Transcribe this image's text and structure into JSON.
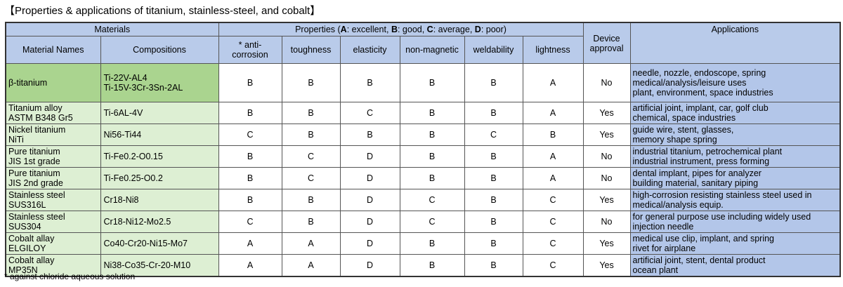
{
  "title": "【Properties & applications of titanium, stainless-steel, and cobalt】",
  "header": {
    "materials": "Materials",
    "properties_prefix": "Properties (",
    "grades": [
      {
        "letter": "A",
        "text": ": excellent, "
      },
      {
        "letter": "B",
        "text": ": good, "
      },
      {
        "letter": "C",
        "text": ": average, "
      },
      {
        "letter": "D",
        "text": ": poor)"
      }
    ],
    "device_approval_1": "Device",
    "device_approval_2": "approval",
    "applications": "Applications",
    "material_names": "Material Names",
    "compositions": "Compositions",
    "anti_corrosion_1": "* anti-",
    "anti_corrosion_2": "corrosion",
    "toughness": "toughness",
    "elasticity": "elasticity",
    "non_magnetic": "non-magnetic",
    "weldability": "weldability",
    "lightness": "lightness"
  },
  "rows": [
    {
      "name": [
        "β-titanium"
      ],
      "comp": [
        "Ti-22V-AL4",
        "Ti-15V-3Cr-3Sn-2AL"
      ],
      "anti": "B",
      "tough": "B",
      "elastic": "B",
      "nonmag": "B",
      "weld": "B",
      "light": "A",
      "approval": "No",
      "app": [
        "needle, nozzle, endoscope, spring",
        "medical/analysis/leisure uses",
        "plant, environment, space industries"
      ]
    },
    {
      "name": [
        "Titanium alloy",
        "ASTM B348 Gr5"
      ],
      "comp": [
        "Ti-6AL-4V"
      ],
      "anti": "B",
      "tough": "B",
      "elastic": "C",
      "nonmag": "B",
      "weld": "B",
      "light": "A",
      "approval": "Yes",
      "app": [
        "artificial joint, implant, car, golf club",
        "chemical, space industries"
      ]
    },
    {
      "name": [
        "Nickel titanium",
        "NiTi"
      ],
      "comp": [
        "Ni56-Ti44"
      ],
      "anti": "C",
      "tough": "B",
      "elastic": "B",
      "nonmag": "B",
      "weld": "C",
      "light": "B",
      "approval": "Yes",
      "app": [
        "guide wire, stent, glasses,",
        "memory shape spring"
      ]
    },
    {
      "name": [
        "Pure titanium",
        "JIS 1st grade"
      ],
      "comp": [
        "Ti-Fe0.2-O0.15"
      ],
      "anti": "B",
      "tough": "C",
      "elastic": "D",
      "nonmag": "B",
      "weld": "B",
      "light": "A",
      "approval": "No",
      "app": [
        "industrial titanium, petrochemical plant",
        "industrial instrument, press forming"
      ]
    },
    {
      "name": [
        "Pure titanium",
        "JIS 2nd grade"
      ],
      "comp": [
        "Ti-Fe0.25-O0.2"
      ],
      "anti": "B",
      "tough": "C",
      "elastic": "D",
      "nonmag": "B",
      "weld": "B",
      "light": "A",
      "approval": "No",
      "app": [
        "dental implant, pipes for analyzer",
        "building material, sanitary piping"
      ]
    },
    {
      "name": [
        "Stainless steel",
        "SUS316L"
      ],
      "comp": [
        "Cr18-Ni8"
      ],
      "anti": "B",
      "tough": "B",
      "elastic": "D",
      "nonmag": "C",
      "weld": "B",
      "light": "C",
      "approval": "Yes",
      "app": [
        "high-corrosion resisting stainless steel used in",
        "medical/analysis equip."
      ]
    },
    {
      "name": [
        "Stainless steel",
        "SUS304"
      ],
      "comp": [
        "Cr18-Ni12-Mo2.5"
      ],
      "anti": "C",
      "tough": "B",
      "elastic": "D",
      "nonmag": "C",
      "weld": "B",
      "light": "C",
      "approval": "No",
      "app": [
        "for general purpose use including widely used",
        "injection needle"
      ]
    },
    {
      "name": [
        "Cobalt allay",
        "ELGILOY"
      ],
      "comp": [
        "Co40-Cr20-Ni15-Mo7"
      ],
      "anti": "A",
      "tough": "A",
      "elastic": "D",
      "nonmag": "B",
      "weld": "B",
      "light": "C",
      "approval": "Yes",
      "app": [
        "medical use clip, implant, and spring",
        "rivet for airplane"
      ]
    },
    {
      "name": [
        "Cobalt allay",
        "MP35N"
      ],
      "comp": [
        "Ni38-Co35-Cr-20-M10"
      ],
      "anti": "A",
      "tough": "A",
      "elastic": "D",
      "nonmag": "B",
      "weld": "B",
      "light": "C",
      "approval": "Yes",
      "app": [
        "artificial joint, stent, dental product",
        "ocean plant"
      ]
    }
  ],
  "footnote": "* against chloride aqueous solution"
}
